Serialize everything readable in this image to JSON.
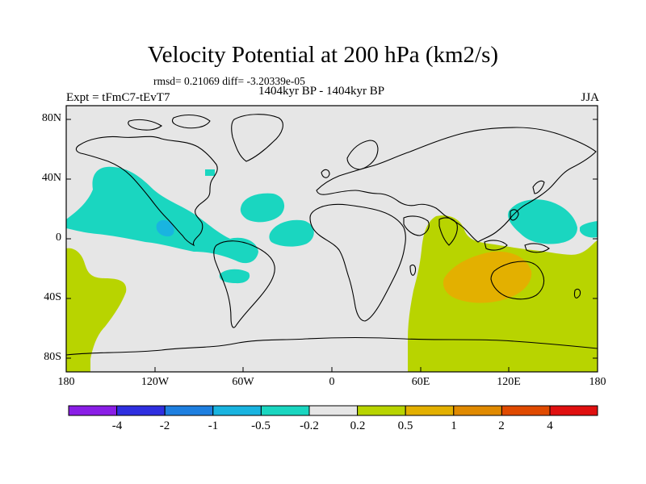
{
  "header": {
    "title": "Velocity Potential at 200 hPa (km2/s)",
    "stats": "rmsd= 0.21069 diff= -3.20339e-05",
    "expt": "Expt = tFmC7-tEvT7",
    "period": "1404kyr BP - 1404kyr BP",
    "season": "JJA"
  },
  "map": {
    "lat_labels": [
      "80N",
      "40N",
      "0",
      "40S",
      "80S"
    ],
    "lon_labels": [
      "180",
      "120W",
      "60W",
      "0",
      "60E",
      "120E",
      "180"
    ]
  },
  "colorbar": {
    "labels": [
      "-4",
      "-2",
      "-1",
      "-0.5",
      "-0.2",
      "0.2",
      "0.5",
      "1",
      "2",
      "4"
    ],
    "colors": [
      "#8a1ee6",
      "#2f2fe0",
      "#1e7fe0",
      "#19b4e0",
      "#1ad6c0",
      "#e6e6e6",
      "#b8d400",
      "#e3b000",
      "#e08a00",
      "#e04a00",
      "#e01010"
    ]
  }
}
